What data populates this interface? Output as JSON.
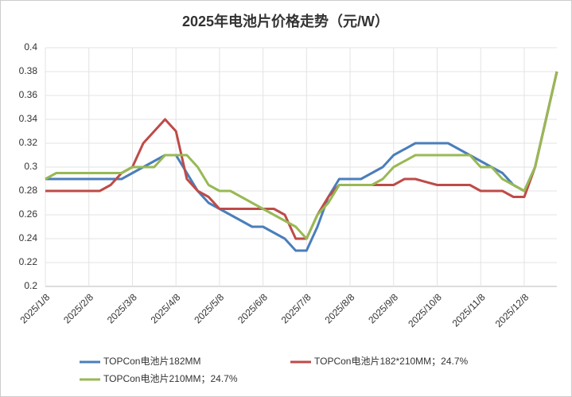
{
  "chart_data": {
    "type": "line",
    "title": "2025年电池片价格走势（元/W）",
    "categories": [
      "2025/1/8",
      null,
      null,
      null,
      "2025/2/8",
      null,
      null,
      null,
      "2025/3/8",
      null,
      null,
      null,
      "2025/4/8",
      null,
      null,
      null,
      "2025/5/8",
      null,
      null,
      null,
      "2025/6/8",
      null,
      null,
      null,
      "2025/7/8",
      null,
      null,
      null,
      "2025/8/8",
      null,
      null,
      null,
      "2025/9/8",
      null,
      null,
      null,
      "2025/10/8",
      null,
      null,
      null,
      "2025/11/8",
      null,
      null,
      null,
      "2025/12/8",
      null,
      null,
      null
    ],
    "series": [
      {
        "name": "TOPCon电池片182MM",
        "color": "#4a7ebb",
        "values": [
          0.29,
          0.29,
          0.29,
          0.29,
          0.29,
          0.29,
          0.29,
          0.29,
          0.295,
          0.3,
          0.305,
          0.31,
          0.31,
          0.295,
          0.28,
          0.27,
          0.265,
          0.26,
          0.255,
          0.25,
          0.25,
          0.245,
          0.24,
          0.23,
          0.23,
          0.25,
          0.275,
          0.29,
          0.29,
          0.29,
          0.295,
          0.3,
          0.31,
          0.315,
          0.32,
          0.32,
          0.32,
          0.32,
          0.315,
          0.31,
          0.305,
          0.3,
          0.295,
          0.285,
          0.28,
          0.3,
          0.34,
          0.38
        ]
      },
      {
        "name": "TOPCon电池片182*210MM；24.7%",
        "color": "#be4b48",
        "values": [
          0.28,
          0.28,
          0.28,
          0.28,
          0.28,
          0.28,
          0.285,
          0.295,
          0.3,
          0.32,
          0.33,
          0.34,
          0.33,
          0.29,
          0.28,
          0.275,
          0.265,
          0.265,
          0.265,
          0.265,
          0.265,
          0.265,
          0.26,
          0.24,
          0.24,
          0.26,
          0.275,
          0.285,
          0.285,
          0.285,
          0.285,
          0.285,
          0.285,
          0.29,
          0.29,
          0.2875,
          0.285,
          0.285,
          0.285,
          0.285,
          0.28,
          0.28,
          0.28,
          0.275,
          0.275,
          0.3,
          0.34,
          0.38
        ]
      },
      {
        "name": "TOPCon电池片210MM；24.7%",
        "color": "#98b954",
        "values": [
          0.29,
          0.295,
          0.295,
          0.295,
          0.295,
          0.295,
          0.295,
          0.295,
          0.3,
          0.3,
          0.3,
          0.31,
          0.31,
          0.31,
          0.3,
          0.285,
          0.28,
          0.28,
          0.275,
          0.27,
          0.265,
          0.26,
          0.255,
          0.25,
          0.24,
          0.26,
          0.27,
          0.285,
          0.285,
          0.285,
          0.285,
          0.29,
          0.3,
          0.305,
          0.31,
          0.31,
          0.31,
          0.31,
          0.31,
          0.31,
          0.3,
          0.3,
          0.29,
          0.285,
          0.28,
          0.3,
          0.34,
          0.38
        ]
      }
    ],
    "ylim": [
      0.2,
      0.4
    ],
    "yticks": [
      0.2,
      0.22,
      0.24,
      0.26,
      0.28,
      0.3,
      0.32,
      0.34,
      0.36,
      0.38,
      0.4
    ],
    "grid": true
  }
}
